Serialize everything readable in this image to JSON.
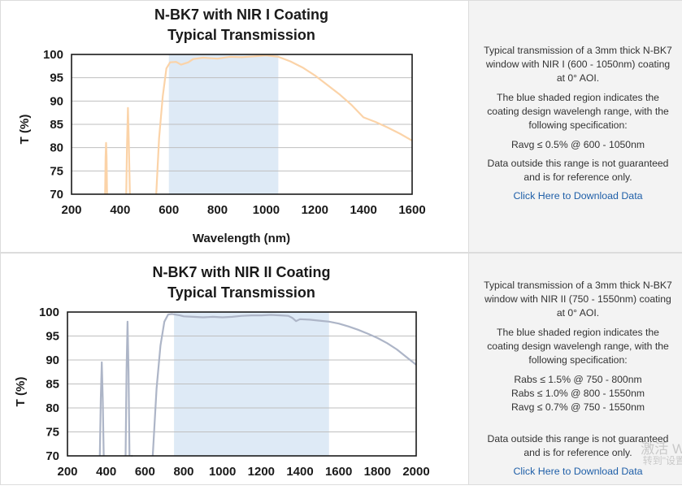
{
  "charts": [
    {
      "title_line1": "N-BK7 with NIR I Coating",
      "title_line2": "Typical Transmission",
      "xlabel": "Wavelength (nm)",
      "ylabel": "T (%)",
      "info": {
        "p1": "Typical transmission of a 3mm thick N-BK7 window with NIR I (600 - 1050nm) coating at 0° AOI.",
        "p2": "The blue shaded region indicates the coating design wavelengh range, with the following specification:",
        "spec": [
          "Ravg ≤ 0.5% @ 600 - 1050nm"
        ],
        "p3": "Data outside this range is not guaranteed and is for reference only.",
        "link": "Click Here to Download Data"
      }
    },
    {
      "title_line1": "N-BK7 with NIR II Coating",
      "title_line2": "Typical Transmission",
      "xlabel": "",
      "ylabel": "T (%)",
      "info": {
        "p1": "Typical transmission of a 3mm thick N-BK7 window with NIR II (750 - 1550nm) coating at 0° AOI.",
        "p2": "The blue shaded region indicates the coating design wavelengh range, with the following specification:",
        "spec": [
          "Rabs ≤ 1.5% @ 750 - 800nm",
          "Rabs ≤ 1.0% @ 800 - 1550nm",
          "Ravg ≤ 0.7% @ 750 - 1550nm"
        ],
        "p3": "Data outside this range is not guaranteed and is for reference only.",
        "link": "Click Here to Download Data"
      }
    }
  ],
  "watermark": {
    "line1": "激活 W",
    "line2": "转到\"设置"
  },
  "colors": {
    "series1": "#fbd3a8",
    "series2": "#adb5c7",
    "shade": "#deeaf6",
    "grid": "#bfbfbf",
    "link": "#1f5fa8"
  },
  "chart_data": [
    {
      "type": "line",
      "title": "N-BK7 with NIR I Coating Typical Transmission",
      "xlabel": "Wavelength (nm)",
      "ylabel": "T (%)",
      "xlim": [
        200,
        1600
      ],
      "ylim": [
        70,
        100
      ],
      "xticks": [
        200,
        400,
        600,
        800,
        1000,
        1200,
        1400,
        1600
      ],
      "yticks": [
        70,
        75,
        80,
        85,
        90,
        95,
        100
      ],
      "shaded_range": [
        600,
        1050
      ],
      "grid": true,
      "series": [
        {
          "color": "#fbd3a8",
          "segments": [
            [
              [
                338,
                70
              ],
              [
                340,
                78
              ],
              [
                342,
                81
              ],
              [
                344,
                78
              ],
              [
                346,
                70
              ]
            ],
            [
              [
                425,
                70
              ],
              [
                428,
                80
              ],
              [
                432,
                88.5
              ],
              [
                436,
                80
              ],
              [
                440,
                70
              ]
            ],
            [
              [
                548,
                70
              ],
              [
                560,
                82
              ],
              [
                575,
                91
              ],
              [
                590,
                97
              ],
              [
                605,
                98.3
              ],
              [
                630,
                98.4
              ],
              [
                650,
                97.8
              ],
              [
                680,
                98.3
              ],
              [
                700,
                99
              ],
              [
                740,
                99.3
              ],
              [
                800,
                99.1
              ],
              [
                850,
                99.5
              ],
              [
                900,
                99.4
              ],
              [
                950,
                99.6
              ],
              [
                1000,
                99.8
              ],
              [
                1050,
                99.5
              ],
              [
                1100,
                98.5
              ],
              [
                1150,
                97.2
              ],
              [
                1200,
                95.5
              ],
              [
                1250,
                93.5
              ],
              [
                1300,
                91.5
              ],
              [
                1350,
                89.2
              ],
              [
                1400,
                86.5
              ],
              [
                1450,
                85.5
              ],
              [
                1500,
                84.3
              ],
              [
                1550,
                83
              ],
              [
                1600,
                81.5
              ]
            ]
          ]
        }
      ]
    },
    {
      "type": "line",
      "title": "N-BK7 with NIR II Coating Typical Transmission",
      "xlabel": "",
      "ylabel": "T (%)",
      "xlim": [
        200,
        2000
      ],
      "ylim": [
        70,
        100
      ],
      "xticks": [
        200,
        400,
        600,
        800,
        1000,
        1200,
        1400,
        1600,
        1800,
        2000
      ],
      "yticks": [
        70,
        75,
        80,
        85,
        90,
        95,
        100
      ],
      "shaded_range": [
        750,
        1550
      ],
      "grid": true,
      "series": [
        {
          "color": "#adb5c7",
          "segments": [
            [
              [
                367,
                70
              ],
              [
                372,
                82
              ],
              [
                377,
                89.5
              ],
              [
                382,
                82
              ],
              [
                387,
                70
              ]
            ],
            [
              [
                500,
                70
              ],
              [
                505,
                88
              ],
              [
                510,
                98
              ],
              [
                515,
                88
              ],
              [
                520,
                70
              ]
            ],
            [
              [
                530,
                70
              ],
              [
                535,
                70
              ]
            ],
            [
              [
                640,
                70
              ],
              [
                660,
                84
              ],
              [
                680,
                93
              ],
              [
                700,
                98
              ],
              [
                720,
                99.5
              ],
              [
                740,
                99.6
              ],
              [
                780,
                99.3
              ],
              [
                800,
                99.1
              ],
              [
                850,
                99
              ],
              [
                900,
                98.9
              ],
              [
                950,
                99
              ],
              [
                1000,
                98.9
              ],
              [
                1050,
                99
              ],
              [
                1100,
                99.2
              ],
              [
                1150,
                99.3
              ],
              [
                1200,
                99.3
              ],
              [
                1250,
                99.4
              ],
              [
                1300,
                99.3
              ],
              [
                1340,
                99.2
              ],
              [
                1360,
                98.8
              ],
              [
                1380,
                98.1
              ],
              [
                1400,
                98.5
              ],
              [
                1450,
                98.4
              ],
              [
                1500,
                98.2
              ],
              [
                1550,
                98
              ],
              [
                1600,
                97.6
              ],
              [
                1650,
                97
              ],
              [
                1700,
                96.3
              ],
              [
                1750,
                95.5
              ],
              [
                1800,
                94.6
              ],
              [
                1850,
                93.5
              ],
              [
                1900,
                92.2
              ],
              [
                1950,
                90.6
              ],
              [
                2000,
                89
              ]
            ]
          ]
        }
      ]
    }
  ]
}
